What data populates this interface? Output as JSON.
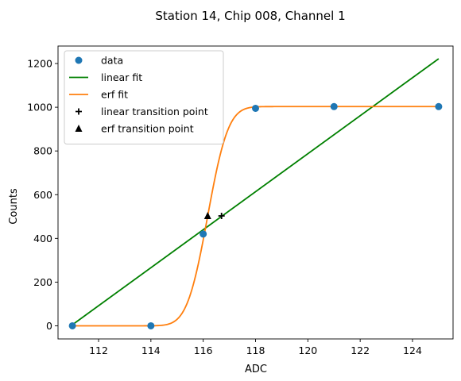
{
  "chart_data": {
    "type": "line",
    "title": "Station 14, Chip 008, Channel 1",
    "xlabel": "ADC",
    "ylabel": "Counts",
    "xlim": [
      110.45,
      125.55
    ],
    "ylim": [
      -60,
      1280
    ],
    "xticks": [
      112,
      114,
      116,
      118,
      120,
      122,
      124
    ],
    "yticks": [
      0,
      200,
      400,
      600,
      800,
      1000,
      1200
    ],
    "grid": false,
    "legend_position": "upper-left",
    "series": [
      {
        "name": "data",
        "kind": "scatter",
        "color": "#1f77b4",
        "x": [
          111,
          114,
          116,
          118,
          121,
          125
        ],
        "y": [
          0,
          0,
          420,
          995,
          1003,
          1003
        ]
      },
      {
        "name": "linear fit",
        "kind": "line",
        "color": "#008000",
        "x": [
          111,
          125
        ],
        "y": [
          5,
          1222
        ]
      },
      {
        "name": "erf fit",
        "kind": "line",
        "color": "#ff7f0e",
        "function": "erf",
        "params": {
          "amplitude": 1003,
          "mu": 116.17,
          "sigma": 0.62
        },
        "xrange": [
          111,
          125
        ]
      },
      {
        "name": "linear transition point",
        "kind": "marker",
        "marker": "plus",
        "color": "#000000",
        "x": [
          116.7
        ],
        "y": [
          503
        ]
      },
      {
        "name": "erf transition point",
        "kind": "marker",
        "marker": "triangle",
        "color": "#000000",
        "x": [
          116.17
        ],
        "y": [
          503
        ]
      }
    ]
  }
}
